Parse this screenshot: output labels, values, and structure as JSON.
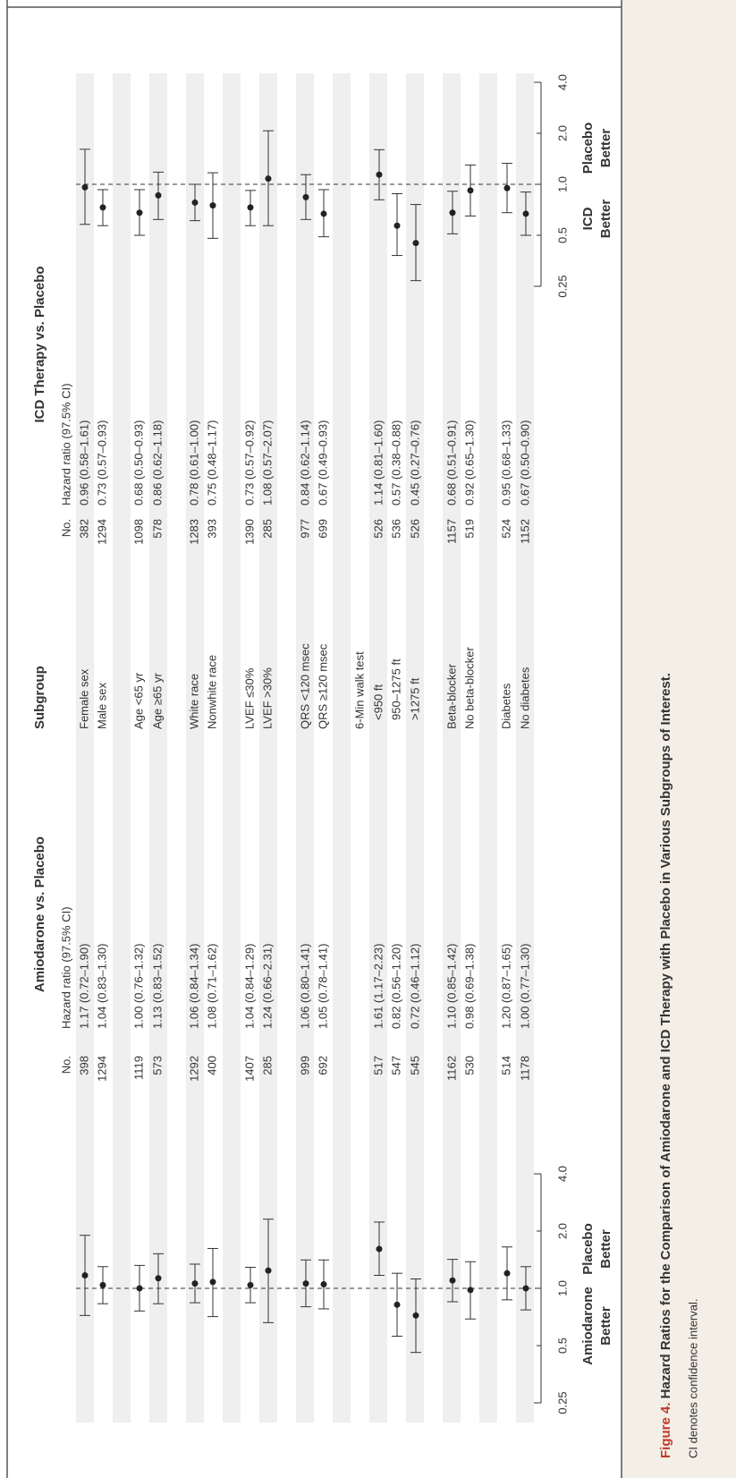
{
  "chart_data": {
    "type": "forest",
    "title": "Hazard Ratios for the Comparison of Amiodarone and ICD Therapy with Placebo in Various Subgroups of Interest.",
    "figure_label": "Figure 4.",
    "note": "CI denotes confidence interval.",
    "subgroup_header": "Subgroup",
    "log_scale": true,
    "xlim": [
      0.25,
      4
    ],
    "xticks": [
      0.25,
      0.5,
      {
        "value": 1,
        "label": "1.0"
      },
      {
        "value": 2,
        "label": "2.0"
      },
      {
        "value": 4,
        "label": "4.0"
      }
    ],
    "reference": 1,
    "panels": [
      {
        "title": "Amiodarone vs. Placebo",
        "n_header": "No.",
        "hr_header": "Hazard ratio (97.5% CI)",
        "left_label": [
          "Amiodarone",
          "Better"
        ],
        "right_label": [
          "Placebo",
          "Better"
        ]
      },
      {
        "title": "ICD Therapy vs. Placebo",
        "n_header": "No.",
        "hr_header": "Hazard ratio (97.5% CI)",
        "left_label": [
          "ICD",
          "Better"
        ],
        "right_label": [
          "Placebo",
          "Better"
        ]
      }
    ],
    "rows": [
      {
        "subgroup": "Female sex",
        "results": [
          {
            "n": 398,
            "hr": 1.17,
            "lo": 0.72,
            "hi": 1.9,
            "label": "1.17 (0.72–1.90)"
          },
          {
            "n": 382,
            "hr": 0.96,
            "lo": 0.58,
            "hi": 1.61,
            "label": "0.96 (0.58–1.61)"
          }
        ]
      },
      {
        "subgroup": "Male sex",
        "results": [
          {
            "n": 1294,
            "hr": 1.04,
            "lo": 0.83,
            "hi": 1.3,
            "label": "1.04 (0.83–1.30)"
          },
          {
            "n": 1294,
            "hr": 0.73,
            "lo": 0.57,
            "hi": 0.93,
            "label": "0.73 (0.57–0.93)"
          }
        ]
      },
      {
        "subgroup": "Age <65 yr",
        "results": [
          {
            "n": 1119,
            "hr": 1.0,
            "lo": 0.76,
            "hi": 1.32,
            "label": "1.00 (0.76–1.32)"
          },
          {
            "n": 1098,
            "hr": 0.68,
            "lo": 0.5,
            "hi": 0.93,
            "label": "0.68 (0.50–0.93)"
          }
        ]
      },
      {
        "subgroup": "Age ≥65 yr",
        "results": [
          {
            "n": 573,
            "hr": 1.13,
            "lo": 0.83,
            "hi": 1.52,
            "label": "1.13 (0.83–1.52)"
          },
          {
            "n": 578,
            "hr": 0.86,
            "lo": 0.62,
            "hi": 1.18,
            "label": "0.86 (0.62–1.18)"
          }
        ]
      },
      {
        "subgroup": "White race",
        "results": [
          {
            "n": 1292,
            "hr": 1.06,
            "lo": 0.84,
            "hi": 1.34,
            "label": "1.06 (0.84–1.34)"
          },
          {
            "n": 1283,
            "hr": 0.78,
            "lo": 0.61,
            "hi": 1.0,
            "label": "0.78 (0.61–1.00)"
          }
        ]
      },
      {
        "subgroup": "Nonwhite race",
        "results": [
          {
            "n": 400,
            "hr": 1.08,
            "lo": 0.71,
            "hi": 1.62,
            "label": "1.08 (0.71–1.62)"
          },
          {
            "n": 393,
            "hr": 0.75,
            "lo": 0.48,
            "hi": 1.17,
            "label": "0.75 (0.48–1.17)"
          }
        ]
      },
      {
        "subgroup": "LVEF ≤30%",
        "results": [
          {
            "n": 1407,
            "hr": 1.04,
            "lo": 0.84,
            "hi": 1.29,
            "label": "1.04 (0.84–1.29)"
          },
          {
            "n": 1390,
            "hr": 0.73,
            "lo": 0.57,
            "hi": 0.92,
            "label": "0.73 (0.57–0.92)"
          }
        ]
      },
      {
        "subgroup": "LVEF >30%",
        "results": [
          {
            "n": 285,
            "hr": 1.24,
            "lo": 0.66,
            "hi": 2.31,
            "label": "1.24 (0.66–2.31)"
          },
          {
            "n": 285,
            "hr": 1.08,
            "lo": 0.57,
            "hi": 2.07,
            "label": "1.08 (0.57–2.07)"
          }
        ]
      },
      {
        "subgroup": "QRS <120 msec",
        "results": [
          {
            "n": 999,
            "hr": 1.06,
            "lo": 0.8,
            "hi": 1.41,
            "label": "1.06 (0.80–1.41)"
          },
          {
            "n": 977,
            "hr": 0.84,
            "lo": 0.62,
            "hi": 1.14,
            "label": "0.84 (0.62–1.14)"
          }
        ]
      },
      {
        "subgroup": "QRS ≥120 msec",
        "results": [
          {
            "n": 692,
            "hr": 1.05,
            "lo": 0.78,
            "hi": 1.41,
            "label": "1.05 (0.78–1.41)"
          },
          {
            "n": 699,
            "hr": 0.67,
            "lo": 0.49,
            "hi": 0.93,
            "label": "0.67 (0.49–0.93)"
          }
        ]
      },
      {
        "subgroup": "6-Min walk test"
      },
      {
        "subgroup": "<950 ft",
        "results": [
          {
            "n": 517,
            "hr": 1.61,
            "lo": 1.17,
            "hi": 2.23,
            "label": "1.61 (1.17–2.23)"
          },
          {
            "n": 526,
            "hr": 1.14,
            "lo": 0.81,
            "hi": 1.6,
            "label": "1.14 (0.81–1.60)"
          }
        ]
      },
      {
        "subgroup": "950–1275 ft",
        "results": [
          {
            "n": 547,
            "hr": 0.82,
            "lo": 0.56,
            "hi": 1.2,
            "label": "0.82 (0.56–1.20)"
          },
          {
            "n": 536,
            "hr": 0.57,
            "lo": 0.38,
            "hi": 0.88,
            "label": "0.57 (0.38–0.88)"
          }
        ]
      },
      {
        "subgroup": ">1275 ft",
        "results": [
          {
            "n": 545,
            "hr": 0.72,
            "lo": 0.46,
            "hi": 1.12,
            "label": "0.72 (0.46–1.12)"
          },
          {
            "n": 526,
            "hr": 0.45,
            "lo": 0.27,
            "hi": 0.76,
            "label": "0.45 (0.27–0.76)"
          }
        ]
      },
      {
        "subgroup": "Beta-blocker",
        "results": [
          {
            "n": 1162,
            "hr": 1.1,
            "lo": 0.85,
            "hi": 1.42,
            "label": "1.10 (0.85–1.42)"
          },
          {
            "n": 1157,
            "hr": 0.68,
            "lo": 0.51,
            "hi": 0.91,
            "label": "0.68 (0.51–0.91)"
          }
        ]
      },
      {
        "subgroup": "No beta-blocker",
        "results": [
          {
            "n": 530,
            "hr": 0.98,
            "lo": 0.69,
            "hi": 1.38,
            "label": "0.98 (0.69–1.38)"
          },
          {
            "n": 519,
            "hr": 0.92,
            "lo": 0.65,
            "hi": 1.3,
            "label": "0.92 (0.65–1.30)"
          }
        ]
      },
      {
        "subgroup": "Diabetes",
        "results": [
          {
            "n": 514,
            "hr": 1.2,
            "lo": 0.87,
            "hi": 1.65,
            "label": "1.20 (0.87–1.65)"
          },
          {
            "n": 524,
            "hr": 0.95,
            "lo": 0.68,
            "hi": 1.33,
            "label": "0.95 (0.68–1.33)"
          }
        ]
      },
      {
        "subgroup": "No diabetes",
        "results": [
          {
            "n": 1178,
            "hr": 1.0,
            "lo": 0.77,
            "hi": 1.3,
            "label": "1.00 (0.77–1.30)"
          },
          {
            "n": 1152,
            "hr": 0.67,
            "lo": 0.5,
            "hi": 0.9,
            "label": "0.67 (0.50–0.90)"
          }
        ]
      }
    ]
  }
}
